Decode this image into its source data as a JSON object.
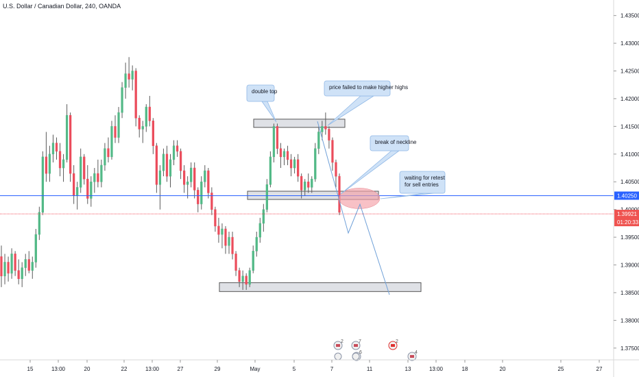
{
  "title": "U.S. Dollar / Canadian Dollar, 240, OANDA",
  "colors": {
    "up": "#53b987",
    "down": "#eb4d5c",
    "blue_line": "#2962ff",
    "red_line": "#f23645",
    "zone_fill": "#d1d4dc",
    "callout_fill": "#cfe2f7",
    "callout_stroke": "#90b8e6",
    "ellipse": "#f4a0a8",
    "projection": "#6fa0d8"
  },
  "chart_data": {
    "type": "candlestick",
    "ylim": [
      1.3738,
      1.4357
    ],
    "y_ticks": [
      "1.43500",
      "1.43000",
      "1.42500",
      "1.42000",
      "1.41500",
      "1.41000",
      "1.40500",
      "1.40000",
      "1.39500",
      "1.39000",
      "1.38500",
      "1.38000",
      "1.37500"
    ],
    "x_ticks": [
      "15",
      "13:00",
      "20",
      "22",
      "13:00",
      "27",
      "29",
      "May",
      "5",
      "7",
      "11",
      "13",
      "13:00",
      "18",
      "20",
      "25",
      "27"
    ],
    "horizontal_line_price": 1.4025,
    "horizontal_line_label": "1.40250",
    "current_price": 1.39921,
    "current_price_label": "1.39921",
    "countdown": "01:20:33",
    "candles": [
      [
        1.3915,
        1.3935,
        1.386,
        1.388
      ],
      [
        1.388,
        1.392,
        1.3865,
        1.3905
      ],
      [
        1.3905,
        1.3915,
        1.387,
        1.3885
      ],
      [
        1.3885,
        1.393,
        1.3875,
        1.392
      ],
      [
        1.392,
        1.3925,
        1.388,
        1.389
      ],
      [
        1.389,
        1.391,
        1.3865,
        1.3875
      ],
      [
        1.3875,
        1.3905,
        1.386,
        1.3895
      ],
      [
        1.3895,
        1.392,
        1.388,
        1.391
      ],
      [
        1.391,
        1.3925,
        1.3885,
        1.389
      ],
      [
        1.389,
        1.3915,
        1.3875,
        1.3905
      ],
      [
        1.3905,
        1.3965,
        1.3895,
        1.3955
      ],
      [
        1.3955,
        1.4005,
        1.3945,
        1.3995
      ],
      [
        1.3995,
        1.4105,
        1.399,
        1.4095
      ],
      [
        1.4095,
        1.414,
        1.405,
        1.4065
      ],
      [
        1.4065,
        1.4115,
        1.405,
        1.41
      ],
      [
        1.41,
        1.4135,
        1.4085,
        1.412
      ],
      [
        1.412,
        1.413,
        1.409,
        1.4105
      ],
      [
        1.4105,
        1.412,
        1.406,
        1.4075
      ],
      [
        1.4075,
        1.41,
        1.405,
        1.409
      ],
      [
        1.409,
        1.419,
        1.4085,
        1.417
      ],
      [
        1.417,
        1.4175,
        1.405,
        1.4065
      ],
      [
        1.4065,
        1.408,
        1.401,
        1.4025
      ],
      [
        1.4025,
        1.405,
        1.4,
        1.404
      ],
      [
        1.404,
        1.411,
        1.403,
        1.4095
      ],
      [
        1.4095,
        1.41,
        1.4045,
        1.4055
      ],
      [
        1.4055,
        1.408,
        1.401,
        1.402
      ],
      [
        1.402,
        1.406,
        1.4005,
        1.405
      ],
      [
        1.405,
        1.4075,
        1.403,
        1.4065
      ],
      [
        1.4065,
        1.409,
        1.404,
        1.405
      ],
      [
        1.405,
        1.409,
        1.404,
        1.408
      ],
      [
        1.408,
        1.412,
        1.407,
        1.411
      ],
      [
        1.411,
        1.413,
        1.4085,
        1.4095
      ],
      [
        1.4095,
        1.416,
        1.409,
        1.415
      ],
      [
        1.415,
        1.417,
        1.412,
        1.413
      ],
      [
        1.413,
        1.4185,
        1.412,
        1.4175
      ],
      [
        1.4175,
        1.423,
        1.4165,
        1.422
      ],
      [
        1.422,
        1.4265,
        1.42,
        1.4245
      ],
      [
        1.4245,
        1.4275,
        1.422,
        1.4235
      ],
      [
        1.4235,
        1.426,
        1.4215,
        1.425
      ],
      [
        1.425,
        1.4255,
        1.415,
        1.4165
      ],
      [
        1.4165,
        1.417,
        1.413,
        1.4145
      ],
      [
        1.4145,
        1.416,
        1.412,
        1.415
      ],
      [
        1.415,
        1.419,
        1.414,
        1.4185
      ],
      [
        1.4185,
        1.4205,
        1.415,
        1.416
      ],
      [
        1.416,
        1.4165,
        1.41,
        1.4115
      ],
      [
        1.4115,
        1.412,
        1.403,
        1.4045
      ],
      [
        1.4045,
        1.408,
        1.4,
        1.407
      ],
      [
        1.407,
        1.411,
        1.406,
        1.41
      ],
      [
        1.41,
        1.4115,
        1.405,
        1.406
      ],
      [
        1.406,
        1.41,
        1.404,
        1.409
      ],
      [
        1.409,
        1.4125,
        1.408,
        1.4115
      ],
      [
        1.4115,
        1.4125,
        1.4095,
        1.4105
      ],
      [
        1.4105,
        1.411,
        1.4055,
        1.407
      ],
      [
        1.407,
        1.408,
        1.403,
        1.4045
      ],
      [
        1.4045,
        1.406,
        1.402,
        1.405
      ],
      [
        1.405,
        1.4085,
        1.404,
        1.4075
      ],
      [
        1.4075,
        1.4085,
        1.402,
        1.4035
      ],
      [
        1.4035,
        1.404,
        1.3995,
        1.401
      ],
      [
        1.401,
        1.406,
        1.4,
        1.405
      ],
      [
        1.405,
        1.408,
        1.404,
        1.407
      ],
      [
        1.407,
        1.4075,
        1.402,
        1.403
      ],
      [
        1.403,
        1.404,
        1.399,
        1.4
      ],
      [
        1.4,
        1.4005,
        1.396,
        1.397
      ],
      [
        1.397,
        1.3985,
        1.394,
        1.3955
      ],
      [
        1.3955,
        1.3975,
        1.393,
        1.3965
      ],
      [
        1.3965,
        1.397,
        1.392,
        1.3935
      ],
      [
        1.3935,
        1.396,
        1.392,
        1.395
      ],
      [
        1.395,
        1.396,
        1.391,
        1.392
      ],
      [
        1.392,
        1.3925,
        1.388,
        1.389
      ],
      [
        1.389,
        1.3895,
        1.386,
        1.387
      ],
      [
        1.387,
        1.389,
        1.3855,
        1.388
      ],
      [
        1.388,
        1.3885,
        1.3855,
        1.3865
      ],
      [
        1.3865,
        1.3895,
        1.386,
        1.389
      ],
      [
        1.389,
        1.3935,
        1.3885,
        1.3925
      ],
      [
        1.3925,
        1.396,
        1.3915,
        1.395
      ],
      [
        1.395,
        1.3985,
        1.394,
        1.3975
      ],
      [
        1.3975,
        1.401,
        1.396,
        1.4
      ],
      [
        1.4,
        1.4055,
        1.3995,
        1.4045
      ],
      [
        1.4045,
        1.4105,
        1.404,
        1.4095
      ],
      [
        1.4095,
        1.4155,
        1.4085,
        1.415
      ],
      [
        1.415,
        1.4155,
        1.41,
        1.411
      ],
      [
        1.411,
        1.412,
        1.4075,
        1.4095
      ],
      [
        1.4095,
        1.411,
        1.408,
        1.4105
      ],
      [
        1.4105,
        1.4115,
        1.408,
        1.409
      ],
      [
        1.409,
        1.41,
        1.406,
        1.4075
      ],
      [
        1.4075,
        1.4095,
        1.4065,
        1.409
      ],
      [
        1.409,
        1.41,
        1.405,
        1.406
      ],
      [
        1.406,
        1.4065,
        1.402,
        1.4035
      ],
      [
        1.4035,
        1.4055,
        1.4025,
        1.405
      ],
      [
        1.405,
        1.4065,
        1.403,
        1.404
      ],
      [
        1.404,
        1.406,
        1.403,
        1.4055
      ],
      [
        1.4055,
        1.412,
        1.405,
        1.411
      ],
      [
        1.411,
        1.415,
        1.41,
        1.414
      ],
      [
        1.414,
        1.416,
        1.4125,
        1.415
      ],
      [
        1.415,
        1.4175,
        1.4135,
        1.4145
      ],
      [
        1.4145,
        1.415,
        1.411,
        1.4125
      ],
      [
        1.4125,
        1.413,
        1.407,
        1.4085
      ],
      [
        1.4085,
        1.409,
        1.404,
        1.406
      ],
      [
        1.406,
        1.4065,
        1.399,
        1.3995
      ]
    ]
  },
  "annotations": {
    "double_top": "double top",
    "failed_highs": "price failed to make higher highs",
    "break_neckline": "break of neckline",
    "retest_line1": "waiting for retest",
    "retest_line2": "for sell entries"
  },
  "events": [
    {
      "label": "2",
      "kind": "flag-us"
    },
    {
      "label": "7",
      "kind": "flag-us"
    },
    {
      "label": "2",
      "kind": "flag-ca"
    },
    {
      "label": "6",
      "kind": "flag-us"
    },
    {
      "label": "4",
      "kind": "flag-us"
    }
  ]
}
